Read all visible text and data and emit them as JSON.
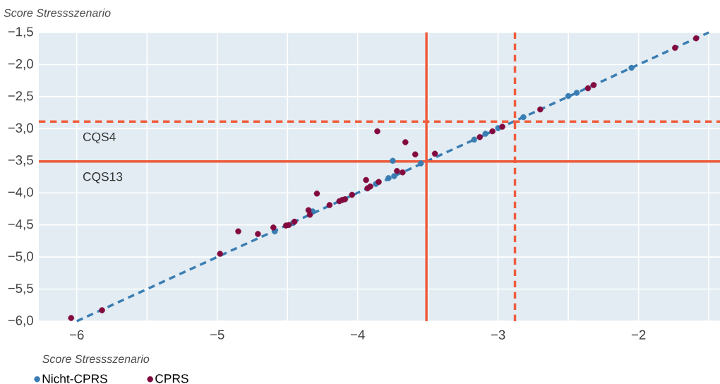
{
  "chart_data": {
    "type": "scatter",
    "xlabel": "Score Stressszenario",
    "ylabel": "Score Stressszenario",
    "xlim": [
      -6.27,
      -1.42
    ],
    "ylim": [
      -6,
      -1.5
    ],
    "xticks": [
      {
        "value": -6,
        "label": "−6"
      },
      {
        "value": -5.5,
        "label": null
      },
      {
        "value": -5,
        "label": "−5"
      },
      {
        "value": -4.5,
        "label": null
      },
      {
        "value": -4,
        "label": "−4"
      },
      {
        "value": -3.5,
        "label": null
      },
      {
        "value": -3,
        "label": "−3"
      },
      {
        "value": -2.5,
        "label": null
      },
      {
        "value": -2,
        "label": "−2"
      },
      {
        "value": -1.5,
        "label": null
      }
    ],
    "yticks": [
      {
        "value": -6,
        "label": "−6,0"
      },
      {
        "value": -5.5,
        "label": "−5,5"
      },
      {
        "value": -5,
        "label": "−5,0"
      },
      {
        "value": -4.5,
        "label": "−4,5"
      },
      {
        "value": -4,
        "label": "−4,0"
      },
      {
        "value": -3.5,
        "label": "−3,5"
      },
      {
        "value": -3,
        "label": "−3,0"
      },
      {
        "value": -2.5,
        "label": "−2,5"
      },
      {
        "value": -2,
        "label": "−2,0"
      },
      {
        "value": -1.5,
        "label": "−1,5"
      }
    ],
    "grid": true,
    "legend": "bottom left",
    "series": [
      {
        "type": "line",
        "line_style": "dashed",
        "marker": "none",
        "color": "#3a7db3",
        "x": [
          -6,
          -1.5
        ],
        "values": [
          -6,
          -1.5
        ]
      },
      {
        "name": "Nicht-CPRS",
        "marker": "circle",
        "color": "#3a7db3",
        "x": [
          -4.59,
          -4.46,
          -4.32,
          -3.87,
          -3.78,
          -3.74,
          -3.75,
          -3.55,
          -3.17,
          -3.09,
          -3.0,
          -2.82,
          -2.5,
          -2.44,
          -2.05
        ],
        "values": [
          -4.6,
          -4.47,
          -4.29,
          -3.86,
          -3.77,
          -3.74,
          -3.5,
          -3.54,
          -3.17,
          -3.08,
          -2.99,
          -2.82,
          -2.49,
          -2.44,
          -2.05
        ]
      },
      {
        "name": "CPRS",
        "marker": "circle",
        "color": "#820a3e",
        "x": [
          -6.04,
          -5.82,
          -4.98,
          -4.85,
          -4.71,
          -4.6,
          -4.51,
          -4.49,
          -4.45,
          -4.35,
          -4.34,
          -4.29,
          -4.2,
          -4.13,
          -4.11,
          -4.09,
          -4.04,
          -3.94,
          -3.93,
          -3.91,
          -3.85,
          -3.86,
          -3.72,
          -3.68,
          -3.66,
          -3.59,
          -3.45,
          -3.13,
          -3.04,
          -2.97,
          -2.7,
          -2.36,
          -2.32,
          -1.74,
          -1.59
        ],
        "values": [
          -5.95,
          -5.83,
          -4.95,
          -4.6,
          -4.64,
          -4.54,
          -4.51,
          -4.5,
          -4.45,
          -4.27,
          -4.34,
          -4.01,
          -4.19,
          -4.13,
          -4.11,
          -4.1,
          -4.03,
          -3.8,
          -3.93,
          -3.9,
          -3.83,
          -3.04,
          -3.66,
          -3.68,
          -3.21,
          -3.4,
          -3.39,
          -3.13,
          -3.04,
          -2.97,
          -2.7,
          -2.37,
          -2.32,
          -1.74,
          -1.59
        ]
      }
    ],
    "ref_lines": [
      {
        "axis": "x",
        "value": -3.51,
        "color": "#ee5a3b",
        "line_style": "solid"
      },
      {
        "axis": "x",
        "value": -2.88,
        "color": "#f05c3e",
        "line_style": "dashed"
      },
      {
        "axis": "y",
        "value": -2.89,
        "color": "#f05d3d",
        "line_style": "dashed",
        "label": "CQS4"
      },
      {
        "axis": "y",
        "value": -3.51,
        "color": "#ed593a",
        "line_style": "solid",
        "label": "CQS13"
      }
    ]
  }
}
